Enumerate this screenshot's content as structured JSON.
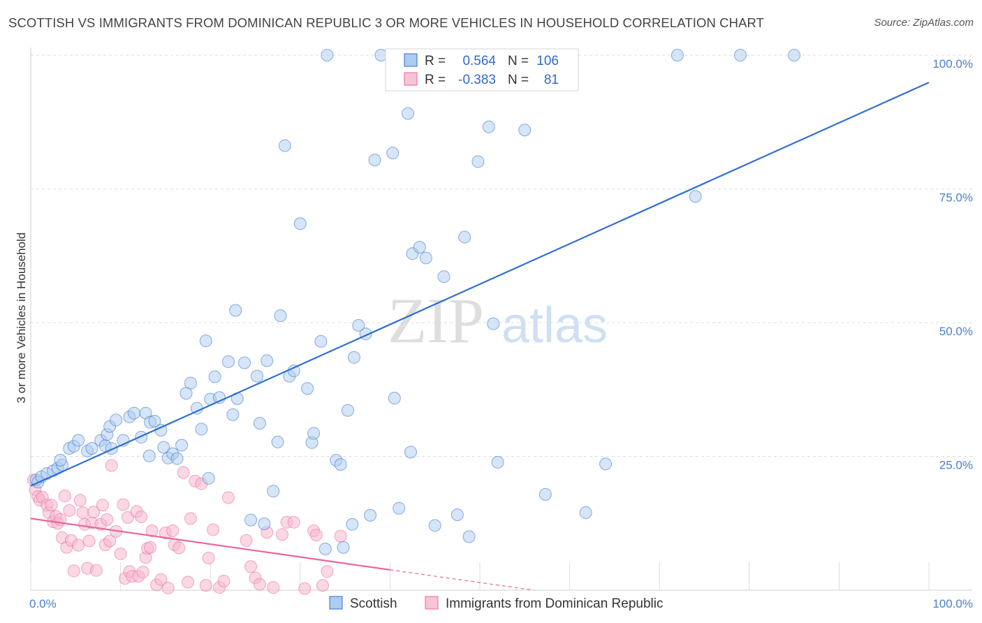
{
  "title": "SCOTTISH VS IMMIGRANTS FROM DOMINICAN REPUBLIC 3 OR MORE VEHICLES IN HOUSEHOLD CORRELATION CHART",
  "source": "Source: ZipAtlas.com",
  "watermark": {
    "zip": "ZIP",
    "atlas": "atlas"
  },
  "colors": {
    "blue": "#2f6fd0",
    "blue_fill": "#aecbf0",
    "pink": "#e8679a",
    "pink_fill": "#f6b8cd"
  },
  "legend": {
    "rows": [
      {
        "r_label": "R =",
        "r_value": "0.564",
        "n_label": "N =",
        "n_value": "106"
      },
      {
        "r_label": "R =",
        "r_value": "-0.383",
        "n_label": "N =",
        "n_value": "81"
      }
    ]
  },
  "bottom_legend": [
    "Scottish",
    "Immigrants from Dominican Republic"
  ],
  "chart_data": {
    "type": "scatter",
    "ylabel": "3 or more Vehicles in Household",
    "xlim": [
      0,
      100
    ],
    "ylim": [
      0,
      100
    ],
    "x_ticks": [
      "0.0%",
      "100.0%"
    ],
    "y_ticks": [
      {
        "value": 25,
        "label": "25.0%"
      },
      {
        "value": 50,
        "label": "50.0%"
      },
      {
        "value": 75,
        "label": "75.0%"
      },
      {
        "value": 100,
        "label": "100.0%"
      }
    ],
    "grid": true,
    "series": [
      {
        "name": "Scottish",
        "color": "#2f6fd0",
        "trend": {
          "x": [
            0,
            100
          ],
          "y": [
            19.5,
            94.9
          ]
        },
        "points": [
          [
            0.6,
            20.6
          ],
          [
            0.8,
            20.2
          ],
          [
            1.2,
            21.2
          ],
          [
            1.8,
            21.8
          ],
          [
            2.5,
            22.3
          ],
          [
            3.0,
            22.8
          ],
          [
            3.5,
            23.4
          ],
          [
            3.3,
            24.3
          ],
          [
            4.3,
            26.5
          ],
          [
            4.8,
            26.9
          ],
          [
            5.3,
            28.0
          ],
          [
            6.3,
            26.0
          ],
          [
            6.8,
            26.5
          ],
          [
            7.8,
            28.0
          ],
          [
            8.3,
            27.0
          ],
          [
            9.0,
            26.5
          ],
          [
            8.5,
            29.1
          ],
          [
            8.8,
            30.6
          ],
          [
            9.5,
            31.8
          ],
          [
            10.3,
            28.0
          ],
          [
            11.0,
            32.4
          ],
          [
            11.5,
            33.1
          ],
          [
            12.3,
            28.6
          ],
          [
            12.8,
            33.1
          ],
          [
            13.2,
            25.1
          ],
          [
            13.3,
            31.4
          ],
          [
            13.8,
            31.6
          ],
          [
            14.5,
            29.9
          ],
          [
            14.8,
            26.7
          ],
          [
            15.3,
            24.7
          ],
          [
            15.8,
            25.5
          ],
          [
            16.3,
            24.6
          ],
          [
            16.8,
            27.1
          ],
          [
            17.3,
            36.8
          ],
          [
            17.8,
            38.7
          ],
          [
            18.5,
            34.0
          ],
          [
            19.0,
            30.1
          ],
          [
            19.5,
            46.6
          ],
          [
            19.8,
            20.9
          ],
          [
            20.0,
            35.7
          ],
          [
            20.5,
            39.9
          ],
          [
            21.0,
            36.0
          ],
          [
            22.0,
            42.7
          ],
          [
            22.5,
            32.8
          ],
          [
            23.0,
            35.8
          ],
          [
            22.8,
            52.3
          ],
          [
            23.8,
            42.5
          ],
          [
            24.5,
            13.1
          ],
          [
            25.2,
            40.0
          ],
          [
            25.5,
            31.2
          ],
          [
            26.0,
            12.4
          ],
          [
            26.3,
            42.9
          ],
          [
            27.0,
            18.5
          ],
          [
            27.5,
            27.7
          ],
          [
            27.8,
            51.3
          ],
          [
            28.3,
            83.1
          ],
          [
            28.8,
            40.0
          ],
          [
            29.3,
            41.0
          ],
          [
            30.0,
            68.5
          ],
          [
            30.8,
            37.7
          ],
          [
            31.3,
            27.6
          ],
          [
            31.5,
            29.3
          ],
          [
            32.3,
            46.5
          ],
          [
            32.8,
            7.7
          ],
          [
            33.0,
            100.0
          ],
          [
            34.0,
            24.3
          ],
          [
            34.5,
            23.5
          ],
          [
            34.8,
            8.0
          ],
          [
            35.3,
            33.6
          ],
          [
            35.8,
            12.3
          ],
          [
            36.0,
            43.5
          ],
          [
            36.5,
            49.5
          ],
          [
            37.3,
            47.9
          ],
          [
            37.8,
            14.0
          ],
          [
            38.3,
            80.4
          ],
          [
            39.0,
            100.0
          ],
          [
            40.3,
            81.7
          ],
          [
            40.5,
            35.9
          ],
          [
            41.0,
            15.3
          ],
          [
            42.0,
            89.1
          ],
          [
            42.3,
            25.8
          ],
          [
            42.5,
            62.9
          ],
          [
            43.3,
            64.1
          ],
          [
            44.0,
            62.1
          ],
          [
            45.0,
            12.1
          ],
          [
            46.0,
            58.6
          ],
          [
            47.5,
            14.1
          ],
          [
            48.3,
            66.0
          ],
          [
            48.8,
            10.0
          ],
          [
            49.8,
            80.1
          ],
          [
            51.0,
            86.6
          ],
          [
            51.5,
            49.8
          ],
          [
            52.0,
            23.9
          ],
          [
            53.0,
            100.0
          ],
          [
            55.0,
            86.0
          ],
          [
            57.5,
            100.0
          ],
          [
            57.8,
            100.0
          ],
          [
            57.3,
            17.9
          ],
          [
            61.8,
            14.5
          ],
          [
            64.0,
            23.6
          ],
          [
            72.0,
            100.0
          ],
          [
            74.0,
            73.6
          ],
          [
            79.0,
            100.0
          ],
          [
            85.0,
            100.0
          ]
        ]
      },
      {
        "name": "Immigrants from Dominican Republic",
        "color": "#e8679a",
        "trend": {
          "x": [
            0,
            40
          ],
          "y": [
            13.4,
            3.8
          ]
        },
        "trend_dashed": {
          "x": [
            40,
            56
          ],
          "y": [
            3.8,
            0
          ]
        },
        "points": [
          [
            0.3,
            20.6
          ],
          [
            0.5,
            18.8
          ],
          [
            0.8,
            17.5
          ],
          [
            1.0,
            16.8
          ],
          [
            1.3,
            17.4
          ],
          [
            1.8,
            15.9
          ],
          [
            2.0,
            14.5
          ],
          [
            2.3,
            15.9
          ],
          [
            2.5,
            12.8
          ],
          [
            2.8,
            13.8
          ],
          [
            3.0,
            12.5
          ],
          [
            3.3,
            13.2
          ],
          [
            3.5,
            9.8
          ],
          [
            3.8,
            17.6
          ],
          [
            4.0,
            8.0
          ],
          [
            4.3,
            14.9
          ],
          [
            4.5,
            9.3
          ],
          [
            4.8,
            3.6
          ],
          [
            5.3,
            8.4
          ],
          [
            5.5,
            16.8
          ],
          [
            5.8,
            14.5
          ],
          [
            6.0,
            12.3
          ],
          [
            6.3,
            4.1
          ],
          [
            6.5,
            9.2
          ],
          [
            6.8,
            12.6
          ],
          [
            7.0,
            14.6
          ],
          [
            7.3,
            3.7
          ],
          [
            7.8,
            12.3
          ],
          [
            8.0,
            15.9
          ],
          [
            8.3,
            8.5
          ],
          [
            8.5,
            13.2
          ],
          [
            8.8,
            9.2
          ],
          [
            9.0,
            23.3
          ],
          [
            9.5,
            11.0
          ],
          [
            10.0,
            6.8
          ],
          [
            10.3,
            16.0
          ],
          [
            10.5,
            2.2
          ],
          [
            10.8,
            13.6
          ],
          [
            11.0,
            3.5
          ],
          [
            11.3,
            2.6
          ],
          [
            11.8,
            14.7
          ],
          [
            12.0,
            2.6
          ],
          [
            12.3,
            13.7
          ],
          [
            12.5,
            3.4
          ],
          [
            12.8,
            6.1
          ],
          [
            13.0,
            7.8
          ],
          [
            13.3,
            8.0
          ],
          [
            13.5,
            11.1
          ],
          [
            14.0,
            1.0
          ],
          [
            14.5,
            2.0
          ],
          [
            15.0,
            10.7
          ],
          [
            15.3,
            0.4
          ],
          [
            15.8,
            11.1
          ],
          [
            16.0,
            8.5
          ],
          [
            16.5,
            7.9
          ],
          [
            17.0,
            22.0
          ],
          [
            17.5,
            1.5
          ],
          [
            17.8,
            13.4
          ],
          [
            18.3,
            20.4
          ],
          [
            19.0,
            19.9
          ],
          [
            19.5,
            0.9
          ],
          [
            19.8,
            6.0
          ],
          [
            20.3,
            11.3
          ],
          [
            21.0,
            0.5
          ],
          [
            21.5,
            1.7
          ],
          [
            22.0,
            17.3
          ],
          [
            24.0,
            9.3
          ],
          [
            24.5,
            4.4
          ],
          [
            25.0,
            2.3
          ],
          [
            25.5,
            1.1
          ],
          [
            26.3,
            10.8
          ],
          [
            27.0,
            0.5
          ],
          [
            28.0,
            10.4
          ],
          [
            28.5,
            12.7
          ],
          [
            29.3,
            12.7
          ],
          [
            30.5,
            0.3
          ],
          [
            31.5,
            11.1
          ],
          [
            31.8,
            10.3
          ],
          [
            32.5,
            0.9
          ],
          [
            33.0,
            3.5
          ],
          [
            34.5,
            10.1
          ]
        ]
      }
    ]
  }
}
